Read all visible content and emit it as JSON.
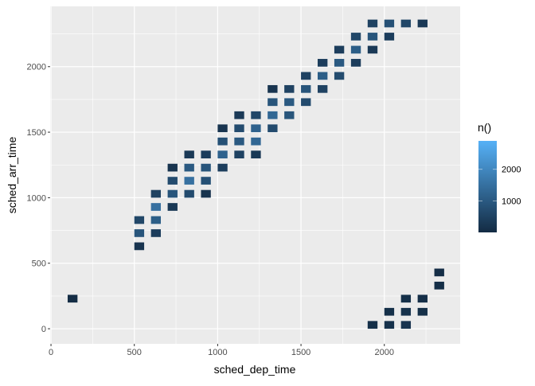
{
  "chart_data": {
    "type": "heatmap",
    "title": "",
    "xlabel": "sched_dep_time",
    "ylabel": "sched_arr_time",
    "xlim": [
      -5,
      2455
    ],
    "ylim": [
      -115,
      2460
    ],
    "x_ticks": [
      0,
      500,
      1000,
      1500,
      2000
    ],
    "y_ticks": [
      0,
      500,
      1000,
      1500,
      2000
    ],
    "x_tick_labels": [
      "0",
      "500",
      "1000",
      "1500",
      "2000"
    ],
    "y_tick_labels": [
      "0",
      "500",
      "1000",
      "1500",
      "2000"
    ],
    "grid": true,
    "legend": {
      "title": "n()",
      "position": "right",
      "range": [
        1,
        2900
      ],
      "ticks": [
        1000,
        2000
      ],
      "tick_labels": [
        "1000",
        "2000"
      ],
      "low_color": "#132B43",
      "high_color": "#56B1F7"
    },
    "tile_fields": [
      "sched_dep_time",
      "sched_arr_time",
      "n"
    ],
    "tiles": [
      [
        100,
        200,
        40
      ],
      [
        500,
        600,
        200
      ],
      [
        500,
        700,
        900
      ],
      [
        500,
        800,
        600
      ],
      [
        600,
        700,
        400
      ],
      [
        600,
        800,
        1100
      ],
      [
        600,
        900,
        1500
      ],
      [
        600,
        1000,
        500
      ],
      [
        700,
        900,
        300
      ],
      [
        700,
        1000,
        900
      ],
      [
        700,
        1100,
        700
      ],
      [
        700,
        1200,
        200
      ],
      [
        800,
        1000,
        700
      ],
      [
        800,
        1100,
        1500
      ],
      [
        800,
        1200,
        1000
      ],
      [
        800,
        1300,
        300
      ],
      [
        900,
        1000,
        200
      ],
      [
        900,
        1100,
        800
      ],
      [
        900,
        1200,
        900
      ],
      [
        900,
        1300,
        400
      ],
      [
        1000,
        1200,
        400
      ],
      [
        1000,
        1300,
        1200
      ],
      [
        1000,
        1400,
        800
      ],
      [
        1000,
        1500,
        200
      ],
      [
        1100,
        1300,
        500
      ],
      [
        1100,
        1400,
        1000
      ],
      [
        1100,
        1500,
        700
      ],
      [
        1100,
        1600,
        300
      ],
      [
        1200,
        1300,
        300
      ],
      [
        1200,
        1400,
        1300
      ],
      [
        1200,
        1500,
        1200
      ],
      [
        1200,
        1600,
        600
      ],
      [
        1300,
        1500,
        700
      ],
      [
        1300,
        1600,
        1300
      ],
      [
        1300,
        1700,
        900
      ],
      [
        1300,
        1800,
        200
      ],
      [
        1400,
        1600,
        900
      ],
      [
        1400,
        1700,
        1000
      ],
      [
        1400,
        1800,
        500
      ],
      [
        1500,
        1700,
        700
      ],
      [
        1500,
        1800,
        900
      ],
      [
        1500,
        1900,
        500
      ],
      [
        1600,
        1800,
        500
      ],
      [
        1600,
        1900,
        1100
      ],
      [
        1600,
        2000,
        400
      ],
      [
        1700,
        1900,
        700
      ],
      [
        1700,
        2000,
        1000
      ],
      [
        1700,
        2100,
        400
      ],
      [
        1800,
        2000,
        400
      ],
      [
        1800,
        2100,
        1100
      ],
      [
        1800,
        2200,
        600
      ],
      [
        1900,
        2100,
        300
      ],
      [
        1900,
        2200,
        900
      ],
      [
        1900,
        2300,
        500
      ],
      [
        2000,
        2200,
        400
      ],
      [
        2000,
        2300,
        800
      ],
      [
        2100,
        2300,
        600
      ],
      [
        2200,
        2300,
        300
      ],
      [
        1900,
        0,
        100
      ],
      [
        2000,
        0,
        150
      ],
      [
        2000,
        100,
        100
      ],
      [
        2100,
        0,
        200
      ],
      [
        2100,
        100,
        150
      ],
      [
        2100,
        200,
        100
      ],
      [
        2200,
        100,
        100
      ],
      [
        2200,
        200,
        80
      ],
      [
        2300,
        300,
        60
      ],
      [
        2300,
        400,
        50
      ]
    ]
  }
}
